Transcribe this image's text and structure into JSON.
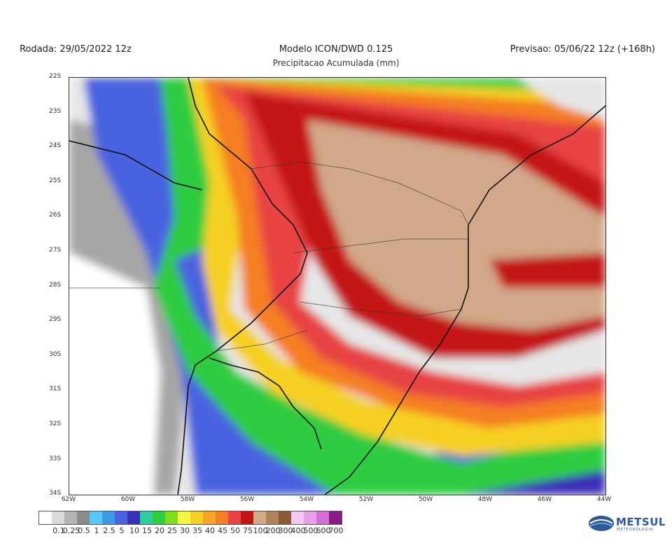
{
  "header": {
    "rodada": "Rodada: 29/05/2022 12z",
    "model": "Modelo ICON/DWD 0.125",
    "previsao": "Previsao: 05/06/22 12z (+168h)",
    "subtitle": "Precipitacao Acumulada (mm)"
  },
  "map": {
    "lat_ticks": [
      "22S",
      "23S",
      "24S",
      "25S",
      "26S",
      "27S",
      "28S",
      "29S",
      "30S",
      "31S",
      "32S",
      "33S",
      "34S"
    ],
    "lon_ticks": [
      "62W",
      "60W",
      "58W",
      "56W",
      "54W",
      "52W",
      "50W",
      "48W",
      "46W",
      "44W"
    ]
  },
  "colorbar": {
    "labels": [
      "0.1",
      "0.25",
      "0.5",
      "1",
      "2.5",
      "5",
      "10",
      "15",
      "20",
      "25",
      "30",
      "35",
      "40",
      "45",
      "50",
      "75",
      "100",
      "200",
      "300",
      "400",
      "500",
      "600",
      "700"
    ],
    "colors": [
      "#ffffff",
      "#d9d9d9",
      "#b3b3b3",
      "#8c8c8c",
      "#5ac8f5",
      "#3d9ae8",
      "#4a63e0",
      "#3a2fb8",
      "#2ecc9a",
      "#2ecc40",
      "#7fdc1a",
      "#f5f542",
      "#f5d020",
      "#f5a623",
      "#f57e23",
      "#e84242",
      "#c41414",
      "#d2a88a",
      "#b0825a",
      "#8a5a32",
      "#f5c8f5",
      "#e8a0e8",
      "#d470d4",
      "#8a1a8a"
    ]
  },
  "logo": {
    "name": "METSUL",
    "tagline": "METEOROLOGIA"
  }
}
